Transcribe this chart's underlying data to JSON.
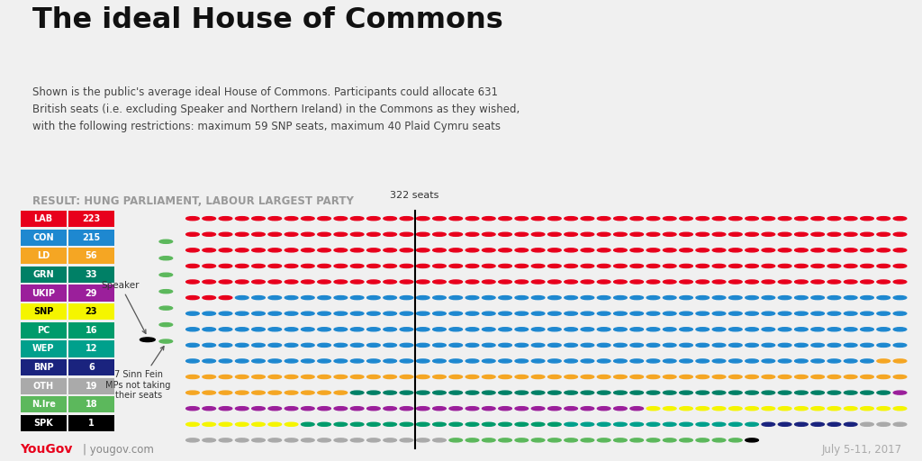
{
  "title": "The ideal House of Commons",
  "subtitle_line1": "Shown is the public's average ideal House of Commons. Participants could allocate 631",
  "subtitle_line2": "British seats (i.e. excluding Speaker and Northern Ireland) in the Commons as they wished,",
  "subtitle_line3": "with the following restrictions: maximum 59 SNP seats, maximum 40 Plaid Cymru seats",
  "result_label": "RESULT: HUNG PARLIAMENT, LABOUR LARGEST PARTY",
  "parties": [
    {
      "name": "LAB",
      "seats": 223,
      "color": "#E8001C",
      "text_color": "#FFFFFF"
    },
    {
      "name": "CON",
      "seats": 215,
      "color": "#1E88D0",
      "text_color": "#FFFFFF"
    },
    {
      "name": "LD",
      "seats": 56,
      "color": "#F5A623",
      "text_color": "#FFFFFF"
    },
    {
      "name": "GRN",
      "seats": 33,
      "color": "#008066",
      "text_color": "#FFFFFF"
    },
    {
      "name": "UKIP",
      "seats": 29,
      "color": "#9B1F9B",
      "text_color": "#FFFFFF"
    },
    {
      "name": "SNP",
      "seats": 23,
      "color": "#F5F500",
      "text_color": "#000000"
    },
    {
      "name": "PC",
      "seats": 16,
      "color": "#009B6B",
      "text_color": "#FFFFFF"
    },
    {
      "name": "WEP",
      "seats": 12,
      "color": "#00A08C",
      "text_color": "#FFFFFF"
    },
    {
      "name": "BNP",
      "seats": 6,
      "color": "#1A237E",
      "text_color": "#FFFFFF"
    },
    {
      "name": "OTH",
      "seats": 19,
      "color": "#AAAAAA",
      "text_color": "#FFFFFF"
    },
    {
      "name": "N.Ire",
      "seats": 18,
      "color": "#5CB85C",
      "text_color": "#FFFFFF"
    },
    {
      "name": "SPK",
      "seats": 1,
      "color": "#000000",
      "text_color": "#FFFFFF"
    }
  ],
  "sinn_fein_count": 7,
  "sinn_fein_color": "#5CB85C",
  "majority_line_after_seat": 322,
  "majority_label": "322 seats",
  "background_color": "#F0F0F0",
  "yougov_color": "#E8001C",
  "date_label": "July 5-11, 2017",
  "grid_cols": 44,
  "grid_rows": 15
}
